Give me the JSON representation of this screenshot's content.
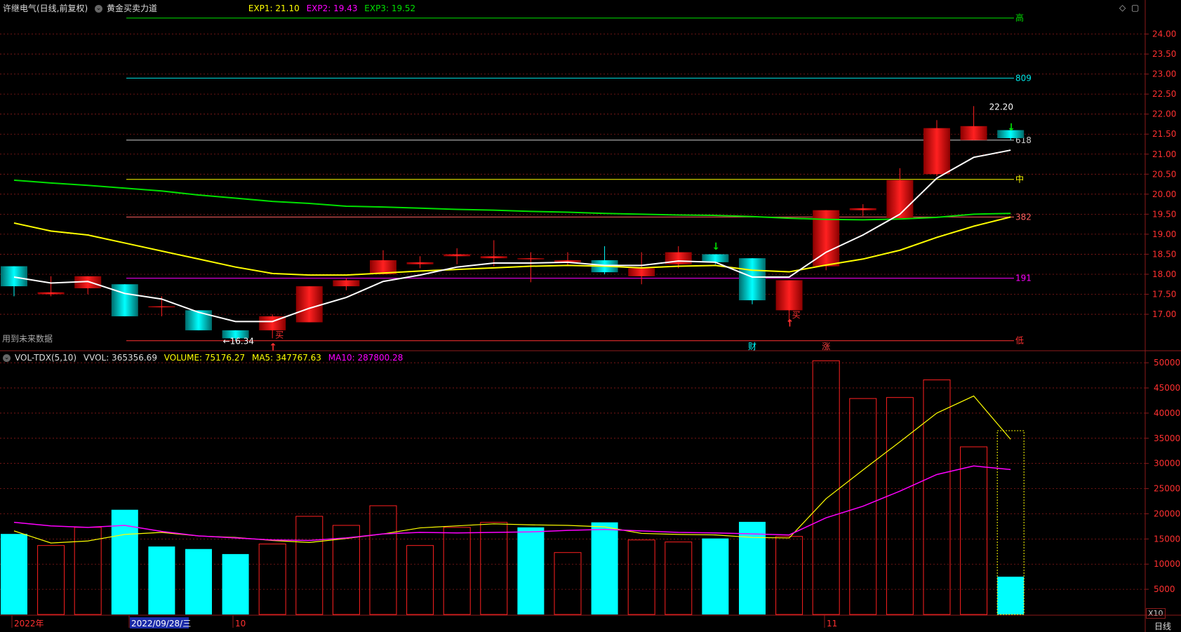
{
  "header": {
    "stock": "许继电气(日线,前复权)",
    "indicator": "黄金买卖力道",
    "exp1": "EXP1: 21.10",
    "exp2": "EXP2: 19.43",
    "exp3": "EXP3: 19.52"
  },
  "vol_header": {
    "title": "VOL-TDX(5,10)",
    "vvol": "VVOL: 365356.69",
    "volume": "VOLUME: 75176.27",
    "ma5": "MA5: 347767.63",
    "ma10": "MA10: 287800.28"
  },
  "notes": {
    "future_data": "用到未来数据",
    "x10": "X10",
    "period": "日线"
  },
  "colors": {
    "up": "#ff2020",
    "down": "#00ffff",
    "ma_white": "#ffffff",
    "ma_yellow": "#ffff00",
    "ma_green": "#00e000",
    "ma10_vol": "#ff00ff",
    "grid": "#8b1a1a"
  },
  "chart_data": [
    {
      "type": "candlestick",
      "y_ticks": [
        "24.00",
        "23.50",
        "23.00",
        "22.50",
        "22.00",
        "21.50",
        "21.00",
        "20.50",
        "20.00",
        "19.50",
        "19.00",
        "18.50",
        "18.00",
        "17.50",
        "17.00"
      ],
      "ylim": [
        16.3,
        24.5
      ],
      "candles": [
        {
          "o": 18.2,
          "h": 18.2,
          "l": 17.45,
          "c": 17.7
        },
        {
          "o": 17.5,
          "h": 17.95,
          "l": 17.45,
          "c": 17.55
        },
        {
          "o": 17.65,
          "h": 17.95,
          "l": 17.5,
          "c": 17.95
        },
        {
          "o": 17.75,
          "h": 17.75,
          "l": 16.95,
          "c": 16.95
        },
        {
          "o": 17.2,
          "h": 17.45,
          "l": 16.95,
          "c": 17.2
        },
        {
          "o": 17.1,
          "h": 17.1,
          "l": 16.6,
          "c": 16.6
        },
        {
          "o": 16.6,
          "h": 16.6,
          "l": 16.34,
          "c": 16.4
        },
        {
          "o": 16.6,
          "h": 17.0,
          "l": 16.4,
          "c": 16.95
        },
        {
          "o": 16.8,
          "h": 17.7,
          "l": 16.8,
          "c": 17.7
        },
        {
          "o": 17.7,
          "h": 17.9,
          "l": 17.6,
          "c": 17.85
        },
        {
          "o": 18.0,
          "h": 18.6,
          "l": 18.0,
          "c": 18.35
        },
        {
          "o": 18.25,
          "h": 18.45,
          "l": 18.15,
          "c": 18.3
        },
        {
          "o": 18.45,
          "h": 18.65,
          "l": 18.25,
          "c": 18.5
        },
        {
          "o": 18.4,
          "h": 18.85,
          "l": 18.2,
          "c": 18.45
        },
        {
          "o": 18.4,
          "h": 18.55,
          "l": 17.8,
          "c": 18.4
        },
        {
          "o": 18.3,
          "h": 18.55,
          "l": 18.2,
          "c": 18.35
        },
        {
          "o": 18.35,
          "h": 18.7,
          "l": 18.0,
          "c": 18.05
        },
        {
          "o": 17.95,
          "h": 18.55,
          "l": 17.75,
          "c": 18.15
        },
        {
          "o": 18.25,
          "h": 18.7,
          "l": 18.15,
          "c": 18.55
        },
        {
          "o": 18.5,
          "h": 18.5,
          "l": 18.25,
          "c": 18.3
        },
        {
          "o": 18.4,
          "h": 18.4,
          "l": 17.25,
          "c": 17.35
        },
        {
          "o": 17.1,
          "h": 17.85,
          "l": 16.8,
          "c": 17.85
        },
        {
          "o": 18.2,
          "h": 19.6,
          "l": 18.1,
          "c": 19.6
        },
        {
          "o": 19.6,
          "h": 19.75,
          "l": 19.45,
          "c": 19.65
        },
        {
          "o": 19.4,
          "h": 20.65,
          "l": 19.4,
          "c": 20.35
        },
        {
          "o": 20.5,
          "h": 21.85,
          "l": 20.45,
          "c": 21.65
        },
        {
          "o": 21.35,
          "h": 22.2,
          "l": 21.35,
          "c": 21.7
        },
        {
          "o": 21.6,
          "h": 21.65,
          "l": 21.35,
          "c": 21.4
        }
      ],
      "ma_white": [
        17.93,
        17.78,
        17.82,
        17.52,
        17.38,
        17.05,
        16.82,
        16.82,
        17.15,
        17.42,
        17.82,
        17.98,
        18.18,
        18.28,
        18.28,
        18.3,
        18.22,
        18.22,
        18.33,
        18.3,
        17.93,
        17.93,
        18.55,
        18.98,
        19.5,
        20.4,
        20.92,
        21.1
      ],
      "ma_yellow": [
        19.28,
        19.08,
        18.98,
        18.78,
        18.58,
        18.38,
        18.18,
        18.02,
        17.98,
        17.98,
        18.03,
        18.08,
        18.12,
        18.16,
        18.2,
        18.22,
        18.2,
        18.16,
        18.2,
        18.22,
        18.1,
        18.06,
        18.23,
        18.38,
        18.6,
        18.92,
        19.2,
        19.43
      ],
      "ma_green": [
        20.35,
        20.28,
        20.22,
        20.15,
        20.08,
        19.98,
        19.9,
        19.82,
        19.77,
        19.7,
        19.68,
        19.65,
        19.62,
        19.6,
        19.57,
        19.55,
        19.52,
        19.5,
        19.48,
        19.47,
        19.44,
        19.4,
        19.37,
        19.36,
        19.38,
        19.42,
        19.5,
        19.52
      ],
      "levels": [
        {
          "label": "809",
          "value": 22.9,
          "color": "#00e5e5"
        },
        {
          "label": "618",
          "value": 21.35,
          "color": "#cccccc"
        },
        {
          "label": "中",
          "value": 20.37,
          "color": "#ffff00"
        },
        {
          "label": "382",
          "value": 19.43,
          "color": "#ff6060"
        },
        {
          "label": "191",
          "value": 17.9,
          "color": "#ff00ff"
        },
        {
          "label": "低",
          "value": 16.34,
          "color": "#ff3030"
        },
        {
          "label": "高",
          "value": 24.4,
          "color": "#00e000"
        }
      ],
      "annotations": [
        {
          "text": "22.20",
          "candle": 26,
          "value": 22.2
        },
        {
          "text": "←16.34",
          "candle": 6,
          "value": 16.34
        },
        {
          "text": "买",
          "candle": 7,
          "value": 16.5
        },
        {
          "text": "买",
          "candle": 21,
          "value": 17.0
        }
      ],
      "arrows": [
        {
          "candle": 7,
          "dir": "up",
          "color": "#ff3030",
          "value": 16.2
        },
        {
          "candle": 21,
          "dir": "up",
          "color": "#ff3030",
          "value": 16.8
        },
        {
          "candle": 19,
          "dir": "down",
          "color": "#00e000",
          "value": 18.72
        },
        {
          "candle": 27,
          "dir": "down",
          "color": "#00e000",
          "value": 21.7
        }
      ],
      "markers": [
        {
          "text": "财",
          "candle": 20,
          "color": "#00ffff"
        },
        {
          "text": "涨",
          "candle": 22,
          "color": "#ff4040"
        }
      ]
    },
    {
      "type": "bar",
      "y_ticks": [
        "50000",
        "45000",
        "40000",
        "35000",
        "30000",
        "25000",
        "20000",
        "15000",
        "10000",
        "5000"
      ],
      "ylim": [
        0,
        51000
      ],
      "volumes": [
        16000,
        13700,
        17300,
        20800,
        13500,
        13000,
        12000,
        14000,
        19500,
        17700,
        21600,
        13700,
        17300,
        18300,
        17300,
        12300,
        18300,
        14800,
        14400,
        15100,
        18400,
        15500,
        50400,
        42900,
        43100,
        46600,
        33300,
        7500
      ],
      "vol_up": [
        false,
        true,
        true,
        false,
        false,
        false,
        false,
        true,
        true,
        true,
        true,
        true,
        true,
        true,
        false,
        true,
        false,
        true,
        true,
        false,
        false,
        true,
        true,
        true,
        true,
        true,
        true,
        false
      ],
      "ma5": [
        16600,
        14200,
        14600,
        15900,
        16300,
        15600,
        15300,
        14700,
        14300,
        15100,
        16000,
        17200,
        17600,
        18000,
        17800,
        17700,
        17400,
        16100,
        15900,
        15800,
        15300,
        15200,
        23000,
        28700,
        34300,
        40000,
        43400,
        34800
      ],
      "ma10": [
        18300,
        17600,
        17300,
        17700,
        16500,
        15600,
        15200,
        14800,
        14700,
        15200,
        16000,
        16300,
        16200,
        16300,
        16400,
        16700,
        16900,
        16600,
        16300,
        16200,
        16000,
        15800,
        19200,
        21500,
        24500,
        27800,
        29500,
        28800
      ],
      "x_labels": [
        "2022年",
        "2022/09/28/三",
        "10",
        "11"
      ]
    }
  ]
}
